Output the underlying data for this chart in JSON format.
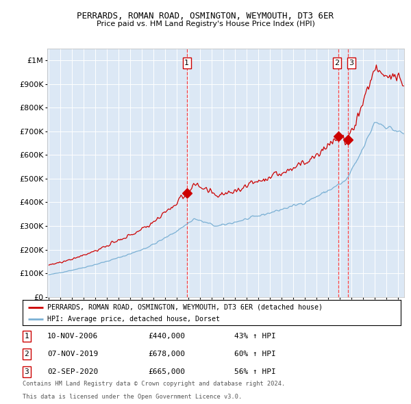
{
  "title": "PERRARDS, ROMAN ROAD, OSMINGTON, WEYMOUTH, DT3 6ER",
  "subtitle": "Price paid vs. HM Land Registry's House Price Index (HPI)",
  "legend_property": "PERRARDS, ROMAN ROAD, OSMINGTON, WEYMOUTH, DT3 6ER (detached house)",
  "legend_hpi": "HPI: Average price, detached house, Dorset",
  "sale1_date": "10-NOV-2006",
  "sale1_price": 440000,
  "sale1_pct": "43%",
  "sale2_date": "07-NOV-2019",
  "sale2_price": 678000,
  "sale2_pct": "60%",
  "sale3_date": "02-SEP-2020",
  "sale3_price": 665000,
  "sale3_pct": "56%",
  "footer1": "Contains HM Land Registry data © Crown copyright and database right 2024.",
  "footer2": "This data is licensed under the Open Government Licence v3.0.",
  "property_color": "#cc0000",
  "hpi_color": "#7ab0d4",
  "bg_color": "#dce8f5",
  "grid_color": "#ffffff",
  "dashed_line_color": "#ff4444",
  "yticks": [
    0,
    100000,
    200000,
    300000,
    400000,
    500000,
    600000,
    700000,
    800000,
    900000,
    1000000
  ],
  "ylim": [
    0,
    1050000
  ],
  "xlim_start": 1994.9,
  "xlim_end": 2025.5
}
